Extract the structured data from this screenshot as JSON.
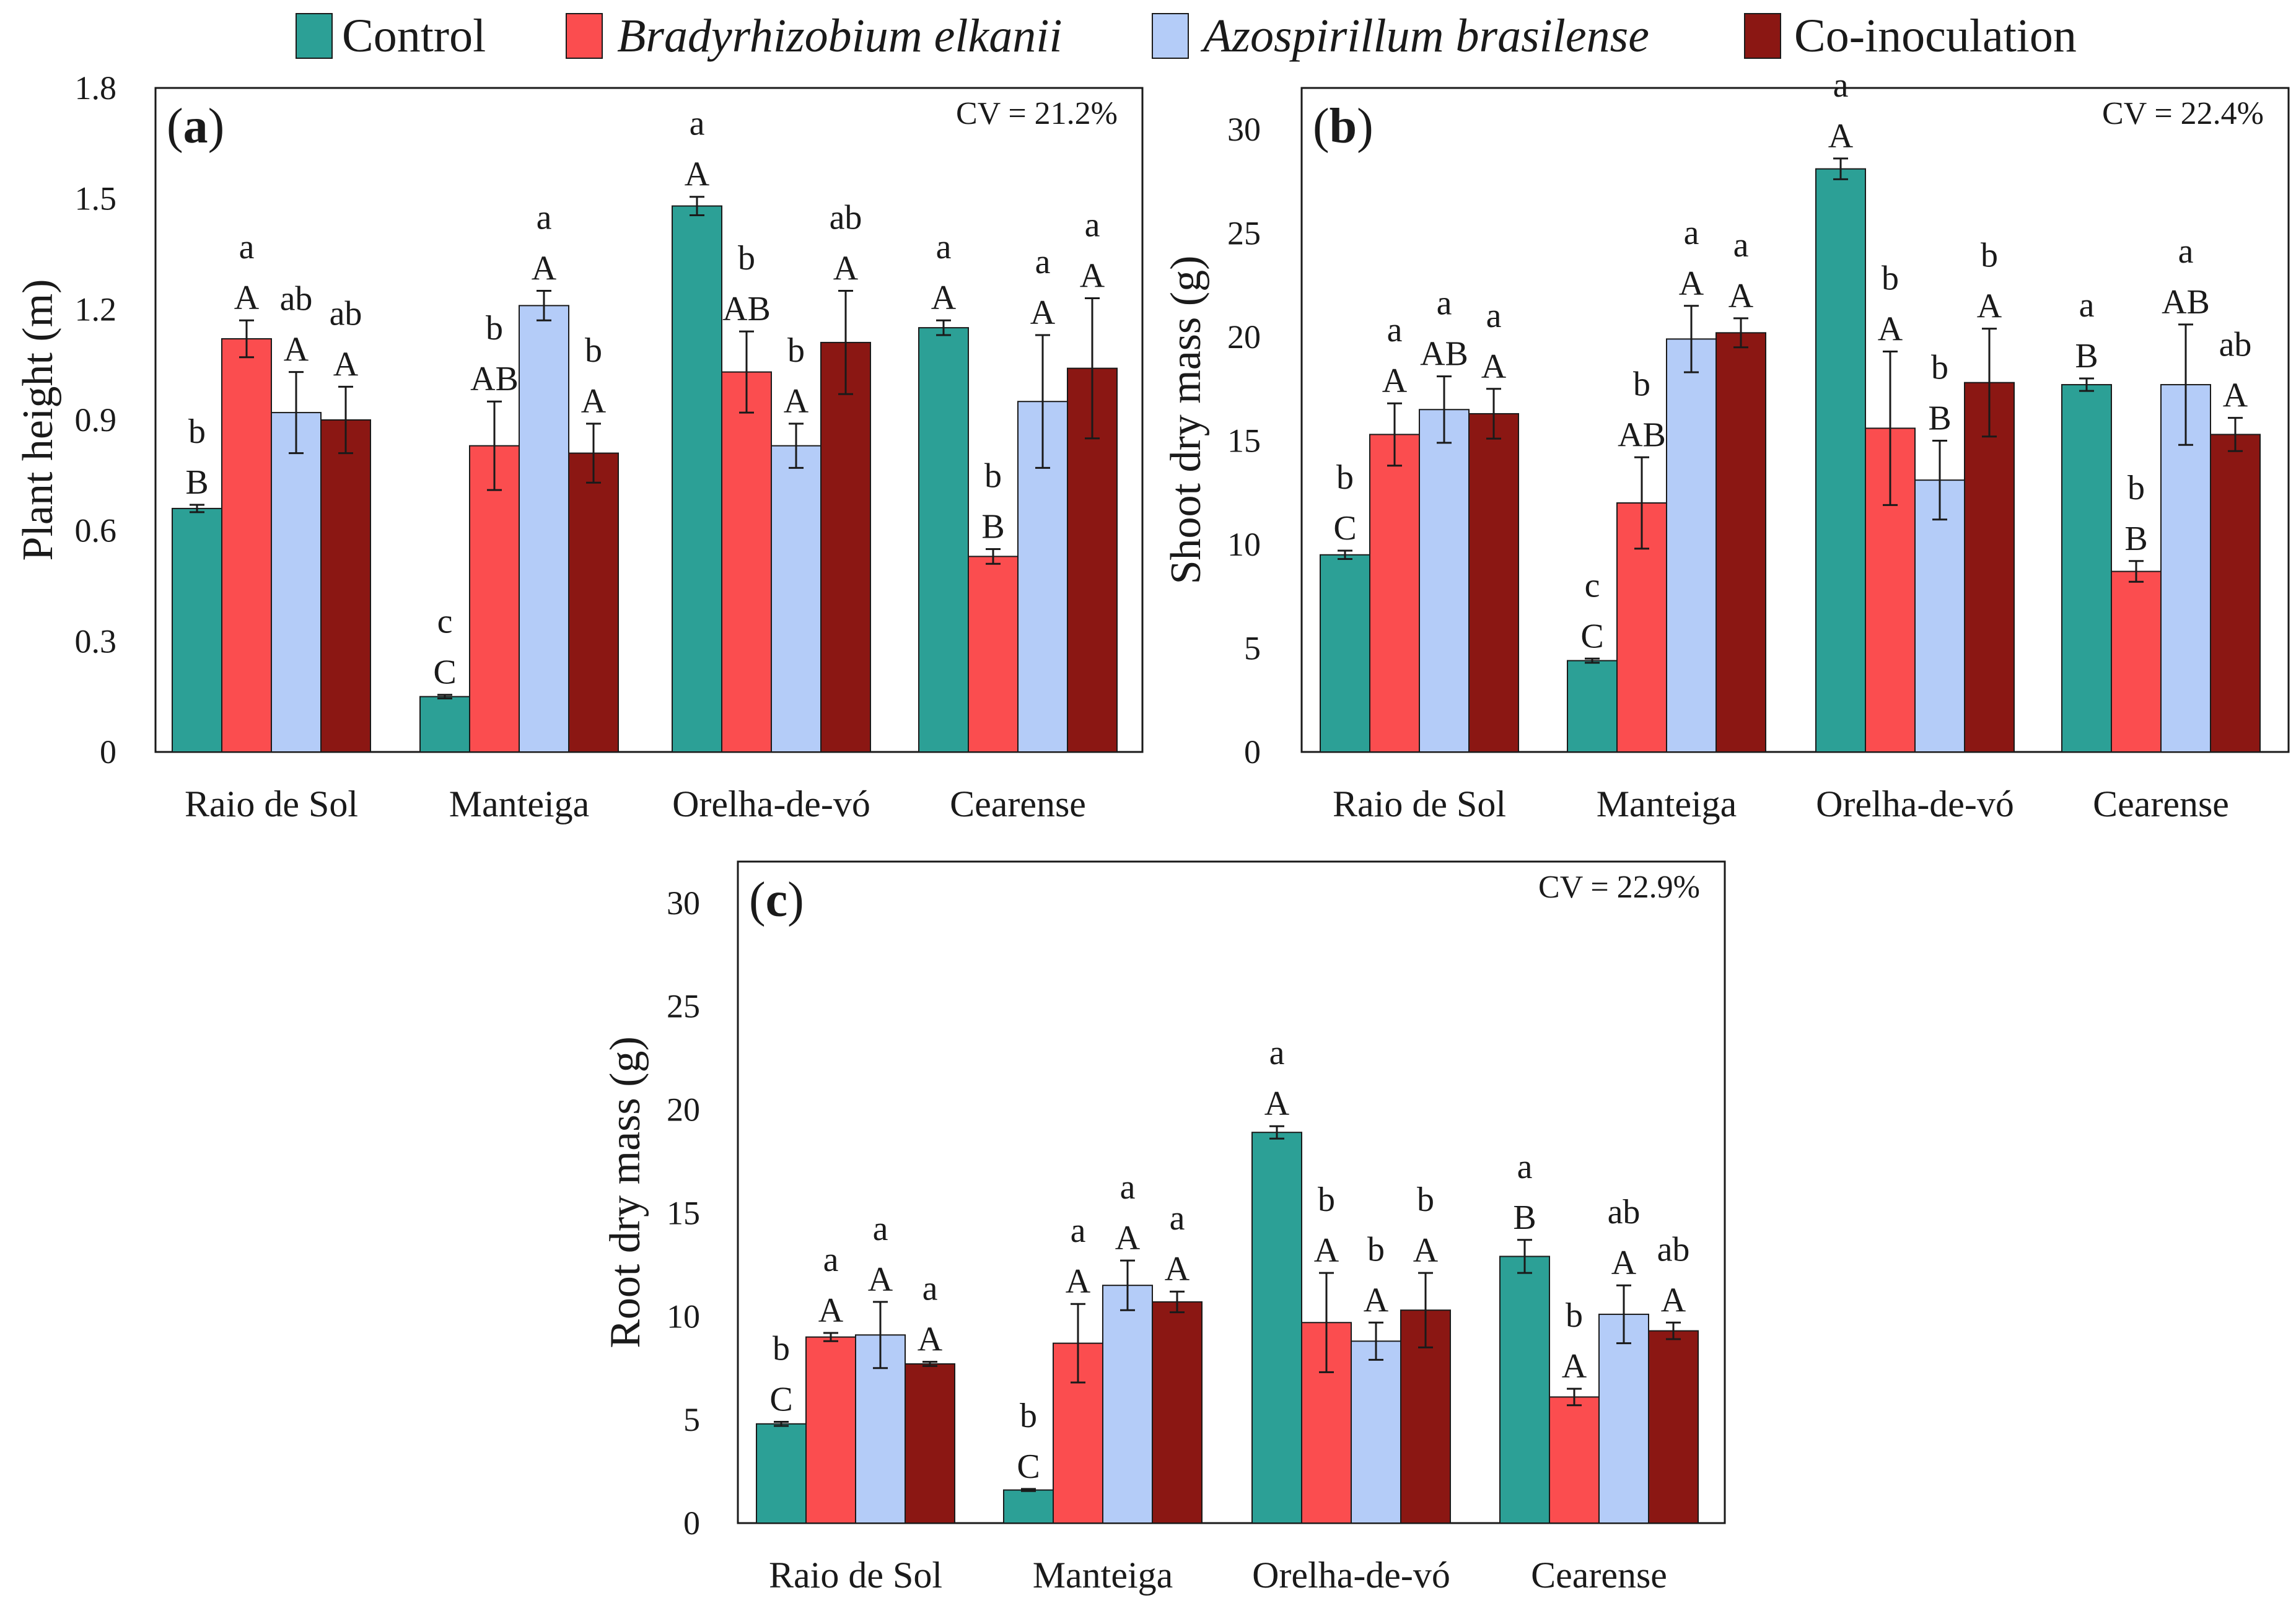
{
  "legend": {
    "items": [
      {
        "label": "Control",
        "italic": false
      },
      {
        "label": "Bradyrhizobium elkanii",
        "italic": true
      },
      {
        "label": "Azospirillum brasilense",
        "italic": true
      },
      {
        "label": "Co-inoculation",
        "italic": false
      }
    ]
  },
  "colors": {
    "series": [
      "#2ca096",
      "#fb4d4f",
      "#b4ccf8",
      "#8b1713"
    ],
    "frame": "#1a1a1a",
    "text": "#1a1a1a"
  },
  "chart_data": [
    {
      "type": "bar",
      "panel_id": "a",
      "panel_letter": "a",
      "cv": "CV = 21.2%",
      "ylabel": "Plant height (m)",
      "ylim": [
        0,
        1.8
      ],
      "yticks": [
        0,
        0.3,
        0.6,
        0.9,
        1.2,
        1.5,
        1.8
      ],
      "ytick_labels": [
        "0",
        "0.3",
        "0.6",
        "0.9",
        "1.2",
        "1.5",
        "1.8"
      ],
      "categories": [
        "Raio de Sol",
        "Manteiga",
        "Orelha-de-vó",
        "Cearense"
      ],
      "series": [
        {
          "name": "Control",
          "values": [
            0.66,
            0.15,
            1.48,
            1.15
          ],
          "errors": [
            0.01,
            0.005,
            0.025,
            0.02
          ],
          "upper_letters": [
            "b",
            "c",
            "a",
            "a"
          ],
          "lower_letters": [
            "B",
            "C",
            "A",
            "A"
          ]
        },
        {
          "name": "Bradyrhizobium elkanii",
          "values": [
            1.12,
            0.83,
            1.03,
            0.53
          ],
          "errors": [
            0.05,
            0.12,
            0.11,
            0.02
          ],
          "upper_letters": [
            "a",
            "b",
            "b",
            "b"
          ],
          "lower_letters": [
            "A",
            "AB",
            "AB",
            "B"
          ]
        },
        {
          "name": "Azospirillum brasilense",
          "values": [
            0.92,
            1.21,
            0.83,
            0.95
          ],
          "errors": [
            0.11,
            0.04,
            0.06,
            0.18
          ],
          "upper_letters": [
            "ab",
            "a",
            "b",
            "a"
          ],
          "lower_letters": [
            "A",
            "A",
            "A",
            "A"
          ]
        },
        {
          "name": "Co-inoculation",
          "values": [
            0.9,
            0.81,
            1.11,
            1.04
          ],
          "errors": [
            0.09,
            0.08,
            0.14,
            0.19
          ],
          "upper_letters": [
            "ab",
            "b",
            "ab",
            "a"
          ],
          "lower_letters": [
            "A",
            "A",
            "A",
            "A"
          ]
        }
      ]
    },
    {
      "type": "bar",
      "panel_id": "b",
      "panel_letter": "b",
      "cv": "CV = 22.4%",
      "ylabel": "Shoot dry mass (g)",
      "ylim": [
        0,
        32
      ],
      "yticks": [
        0,
        5,
        10,
        15,
        20,
        25,
        30
      ],
      "ytick_labels": [
        "0",
        "5",
        "10",
        "15",
        "20",
        "25",
        "30"
      ],
      "categories": [
        "Raio de Sol",
        "Manteiga",
        "Orelha-de-vó",
        "Cearense"
      ],
      "series": [
        {
          "name": "Control",
          "values": [
            9.5,
            4.4,
            28.1,
            17.7
          ],
          "errors": [
            0.2,
            0.1,
            0.5,
            0.3
          ],
          "upper_letters": [
            "b",
            "c",
            "a",
            "a"
          ],
          "lower_letters": [
            "C",
            "C",
            "A",
            "B"
          ]
        },
        {
          "name": "Bradyrhizobium elkanii",
          "values": [
            15.3,
            12.0,
            15.6,
            8.7
          ],
          "errors": [
            1.5,
            2.2,
            3.7,
            0.5
          ],
          "upper_letters": [
            "a",
            "b",
            "b",
            "b"
          ],
          "lower_letters": [
            "A",
            "AB",
            "A",
            "B"
          ]
        },
        {
          "name": "Azospirillum brasilense",
          "values": [
            16.5,
            19.9,
            13.1,
            17.7
          ],
          "errors": [
            1.6,
            1.6,
            1.9,
            2.9
          ],
          "upper_letters": [
            "a",
            "a",
            "b",
            "a"
          ],
          "lower_letters": [
            "AB",
            "A",
            "B",
            "AB"
          ]
        },
        {
          "name": "Co-inoculation",
          "values": [
            16.3,
            20.2,
            17.8,
            15.3
          ],
          "errors": [
            1.2,
            0.7,
            2.6,
            0.8
          ],
          "upper_letters": [
            "a",
            "a",
            "b",
            "ab"
          ],
          "lower_letters": [
            "A",
            "A",
            "A",
            "A"
          ]
        }
      ]
    },
    {
      "type": "bar",
      "panel_id": "c",
      "panel_letter": "c",
      "cv": "CV = 22.9%",
      "ylabel": "Root dry mass (g)",
      "ylim": [
        0,
        32
      ],
      "yticks": [
        0,
        5,
        10,
        15,
        20,
        25,
        30
      ],
      "ytick_labels": [
        "0",
        "5",
        "10",
        "15",
        "20",
        "25",
        "30"
      ],
      "categories": [
        "Raio de Sol",
        "Manteiga",
        "Orelha-de-vó",
        "Cearense"
      ],
      "series": [
        {
          "name": "Control",
          "values": [
            4.8,
            1.6,
            18.9,
            12.9
          ],
          "errors": [
            0.1,
            0.05,
            0.3,
            0.8
          ],
          "upper_letters": [
            "b",
            "b",
            "a",
            "a"
          ],
          "lower_letters": [
            "C",
            "C",
            "A",
            "B"
          ]
        },
        {
          "name": "Bradyrhizobium elkanii",
          "values": [
            9.0,
            8.7,
            9.7,
            6.1
          ],
          "errors": [
            0.2,
            1.9,
            2.4,
            0.4
          ],
          "upper_letters": [
            "a",
            "a",
            "b",
            "b"
          ],
          "lower_letters": [
            "A",
            "A",
            "A",
            "A"
          ]
        },
        {
          "name": "Azospirillum brasilense",
          "values": [
            9.1,
            11.5,
            8.8,
            10.1
          ],
          "errors": [
            1.6,
            1.2,
            0.9,
            1.4
          ],
          "upper_letters": [
            "a",
            "a",
            "b",
            "ab"
          ],
          "lower_letters": [
            "A",
            "A",
            "A",
            "A"
          ]
        },
        {
          "name": "Co-inoculation",
          "values": [
            7.7,
            10.7,
            10.3,
            9.3
          ],
          "errors": [
            0.1,
            0.5,
            1.8,
            0.4
          ],
          "upper_letters": [
            "a",
            "a",
            "b",
            "ab"
          ],
          "lower_letters": [
            "A",
            "A",
            "A",
            "A"
          ]
        }
      ]
    }
  ]
}
